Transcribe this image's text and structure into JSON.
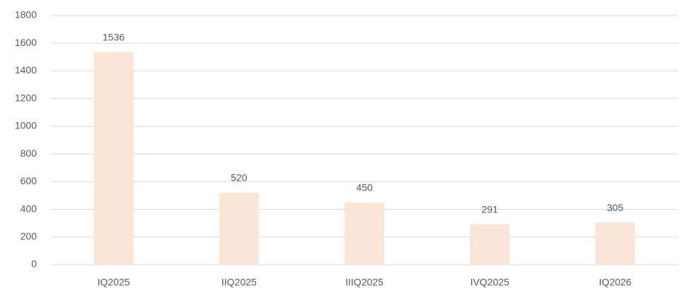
{
  "chart_data": {
    "type": "bar",
    "categories": [
      "IQ2025",
      "IIQ2025",
      "IIIQ2025",
      "IVQ2025",
      "IQ2026"
    ],
    "values": [
      1536,
      520,
      450,
      291,
      305
    ],
    "color": "#fbe5d6",
    "ylim": [
      0,
      1800
    ],
    "yticks": [
      0,
      200,
      400,
      600,
      800,
      1000,
      1200,
      1400,
      1600,
      1800
    ],
    "grid": true,
    "data_labels": true
  }
}
